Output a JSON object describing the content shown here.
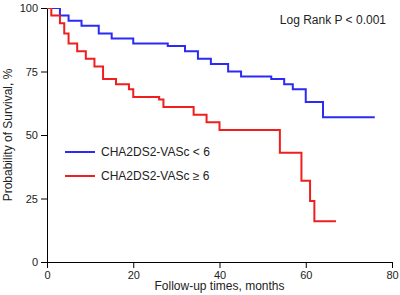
{
  "chart_data": {
    "type": "line",
    "x_label": "Follow-up times, months",
    "y_label": "Probability of Survival, %",
    "annotation": "Log Rank P < 0.001",
    "xlim": [
      0,
      80
    ],
    "xticks": [
      0,
      20,
      40,
      60,
      80
    ],
    "ylim": [
      0,
      100
    ],
    "yticks": [
      0,
      25,
      50,
      75,
      100
    ],
    "grid": false,
    "legend": "lower left",
    "series": [
      {
        "name": "CHA2DS2-VASc < 6",
        "color": "#2b2bf5",
        "line_style": "step",
        "x": [
          0,
          3,
          5,
          8,
          12,
          15,
          20,
          28,
          32,
          35,
          38,
          42,
          45,
          52,
          55,
          57,
          60,
          64,
          76
        ],
        "values": [
          100,
          97,
          95,
          93,
          90,
          88,
          86,
          85,
          83,
          80,
          78,
          75,
          73,
          72,
          70,
          68,
          63,
          57,
          57
        ]
      },
      {
        "name": "CHA2DS2-VASc ≥ 6",
        "color": "#f01f1f",
        "line_style": "step",
        "x": [
          0,
          1,
          3,
          4,
          5,
          7,
          9,
          11,
          13,
          16,
          19,
          20,
          26,
          27,
          34,
          37,
          40,
          52,
          54,
          59,
          61,
          62,
          67
        ],
        "values": [
          100,
          97,
          94,
          90,
          86,
          83,
          80,
          77,
          72,
          70,
          68,
          65,
          64,
          61,
          58,
          55,
          52,
          52,
          43,
          32,
          24,
          16,
          16
        ]
      }
    ]
  }
}
